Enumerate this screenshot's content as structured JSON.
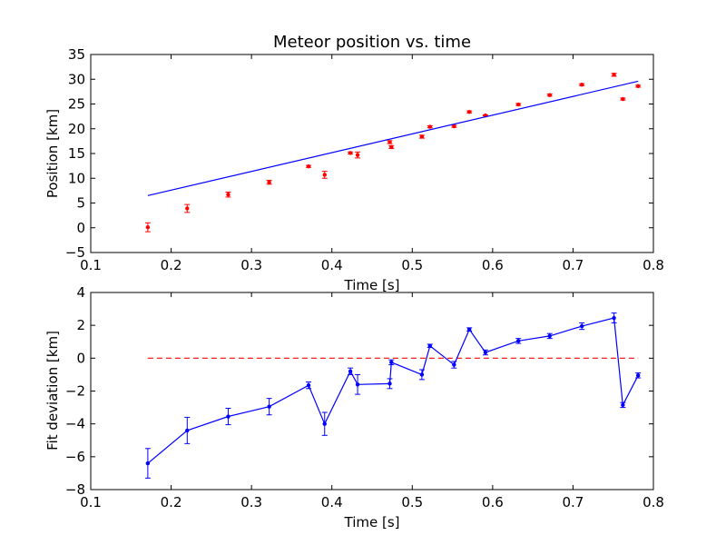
{
  "chart_data": [
    {
      "type": "scatter",
      "title": "Meteor position vs. time",
      "xlabel": "Time [s]",
      "ylabel": "Position [km]",
      "xlim": [
        0.1,
        0.8
      ],
      "ylim": [
        -5,
        35
      ],
      "xticks": [
        "0.1",
        "0.2",
        "0.3",
        "0.4",
        "0.5",
        "0.6",
        "0.7",
        "0.8"
      ],
      "yticks": [
        "−5",
        "0",
        "5",
        "10",
        "15",
        "20",
        "25",
        "30",
        "35"
      ],
      "grid": false,
      "colors": {
        "points": "#ff0000",
        "fit": "#0000ff"
      },
      "series": [
        {
          "kind": "points-with-error-bars",
          "x": [
            0.171,
            0.22,
            0.271,
            0.322,
            0.371,
            0.391,
            0.423,
            0.432,
            0.472,
            0.474,
            0.512,
            0.522,
            0.552,
            0.571,
            0.591,
            0.632,
            0.671,
            0.711,
            0.751,
            0.762,
            0.781
          ],
          "y": [
            0.1,
            3.9,
            6.7,
            9.2,
            12.4,
            10.7,
            15.1,
            14.7,
            17.3,
            16.3,
            18.4,
            20.4,
            20.5,
            23.4,
            22.7,
            24.9,
            26.8,
            28.9,
            30.9,
            26.0,
            28.6
          ],
          "err": [
            0.9,
            0.8,
            0.5,
            0.4,
            0.2,
            0.7,
            0.2,
            0.6,
            0.3,
            0.3,
            0.3,
            0.2,
            0.2,
            0.2,
            0.1,
            0.2,
            0.2,
            0.2,
            0.3,
            0.2,
            0.2
          ]
        },
        {
          "kind": "fit-line",
          "x": [
            0.171,
            0.781
          ],
          "y": [
            6.5,
            29.6
          ]
        }
      ]
    },
    {
      "type": "line",
      "xlabel": "Time [s]",
      "ylabel": "Fit deviation [km]",
      "xlim": [
        0.1,
        0.8
      ],
      "ylim": [
        -8,
        4
      ],
      "xticks": [
        "0.1",
        "0.2",
        "0.3",
        "0.4",
        "0.5",
        "0.6",
        "0.7",
        "0.8"
      ],
      "yticks": [
        "−8",
        "−6",
        "−4",
        "−2",
        "0",
        "2",
        "4"
      ],
      "grid": false,
      "colors": {
        "line": "#0000ff",
        "zero": "#ff0000"
      },
      "reference_line": {
        "y": 0,
        "x": [
          0.171,
          0.781
        ],
        "style": "dashed"
      },
      "series": [
        {
          "kind": "line-with-error-bars",
          "x": [
            0.171,
            0.22,
            0.271,
            0.322,
            0.371,
            0.391,
            0.423,
            0.432,
            0.472,
            0.474,
            0.512,
            0.522,
            0.552,
            0.571,
            0.591,
            0.632,
            0.671,
            0.711,
            0.751,
            0.762,
            0.781
          ],
          "y": [
            -6.4,
            -4.4,
            -3.55,
            -2.95,
            -1.65,
            -4.0,
            -0.8,
            -1.6,
            -1.55,
            -0.25,
            -1.0,
            0.75,
            -0.4,
            1.75,
            0.35,
            1.05,
            1.35,
            1.95,
            2.45,
            -2.85,
            -1.05
          ],
          "err": [
            0.9,
            0.8,
            0.5,
            0.5,
            0.2,
            0.7,
            0.2,
            0.6,
            0.3,
            0.15,
            0.3,
            0.1,
            0.2,
            0.1,
            0.15,
            0.15,
            0.15,
            0.2,
            0.3,
            0.15,
            0.15
          ]
        }
      ]
    }
  ]
}
